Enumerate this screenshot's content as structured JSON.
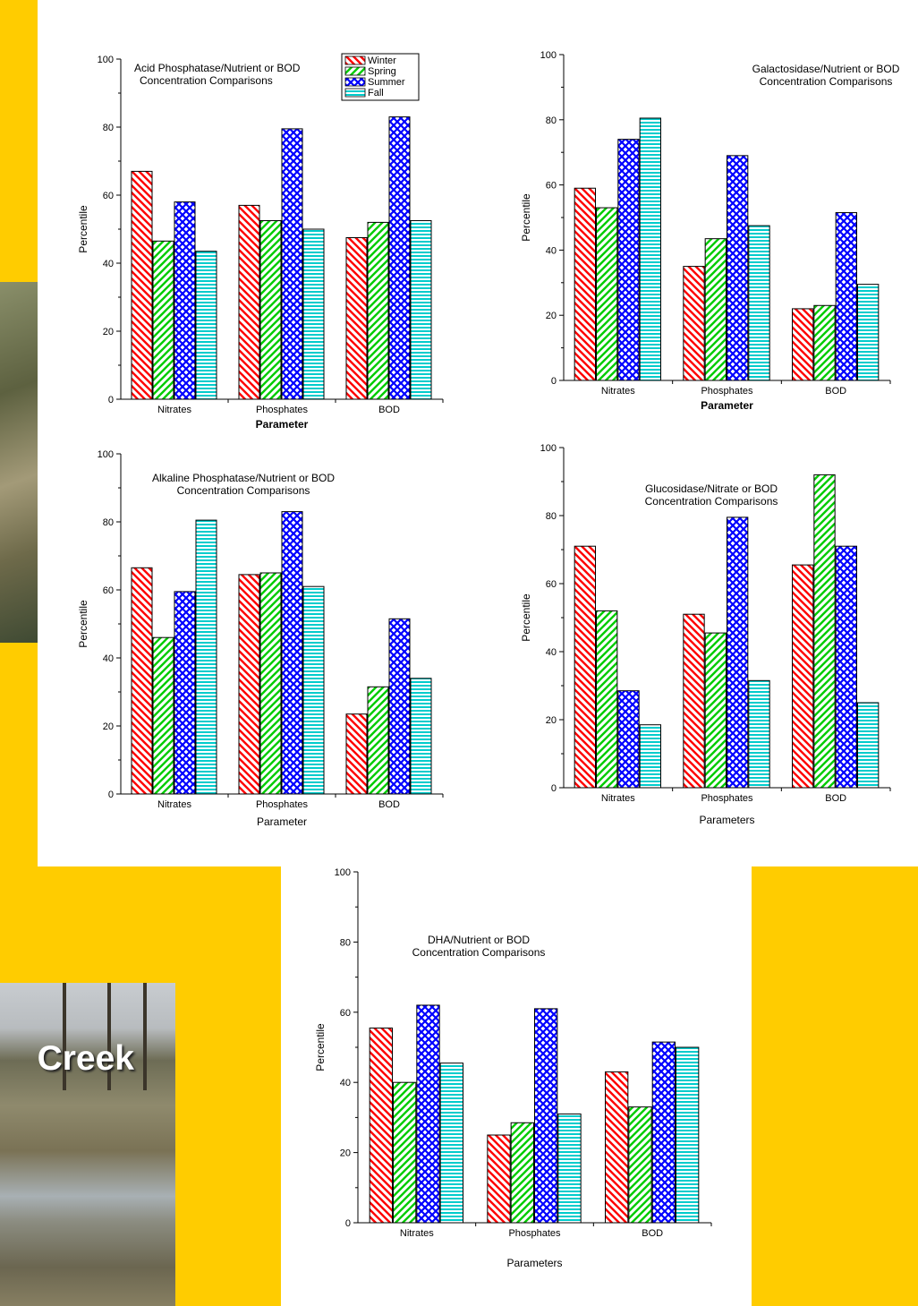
{
  "background": {
    "color": "#FFCC00"
  },
  "photo": {
    "caption": "Creek"
  },
  "series_colors": [
    "#ff0000",
    "#00cc00",
    "#0000ff",
    "#00cccc"
  ],
  "chart_data": [
    {
      "id": "acid",
      "type": "bar",
      "title_lines": [
        "Acid Phosphatase/Nutrient or BOD",
        "Concentration Comparisons"
      ],
      "xlabel": "Parameter",
      "xlabel_bold": true,
      "ylabel": "Percentile",
      "ylim": [
        0,
        100
      ],
      "yticks": [
        0,
        20,
        40,
        60,
        80,
        100
      ],
      "categories": [
        "Nitrates",
        "Phosphates",
        "BOD"
      ],
      "legend": {
        "placement": "top-right",
        "entries": [
          "Winter",
          "Spring",
          "Summer",
          "Fall"
        ]
      },
      "series": [
        {
          "name": "Winter",
          "values": [
            67,
            57,
            47.5
          ]
        },
        {
          "name": "Spring",
          "values": [
            46.5,
            52.5,
            52
          ]
        },
        {
          "name": "Summer",
          "values": [
            58,
            79.5,
            83
          ]
        },
        {
          "name": "Fall",
          "values": [
            43.5,
            50,
            52.5
          ]
        }
      ]
    },
    {
      "id": "galacto",
      "type": "bar",
      "title_lines": [
        "Galactosidase/Nutrient or BOD",
        "Concentration Comparisons"
      ],
      "xlabel": "Parameter",
      "xlabel_bold": true,
      "ylabel": "Percentile",
      "ylim": [
        0,
        100
      ],
      "yticks": [
        0,
        20,
        40,
        60,
        80,
        100
      ],
      "categories": [
        "Nitrates",
        "Phosphates",
        "BOD"
      ],
      "series": [
        {
          "name": "Winter",
          "values": [
            59,
            35,
            22
          ]
        },
        {
          "name": "Spring",
          "values": [
            53,
            43.5,
            23
          ]
        },
        {
          "name": "Summer",
          "values": [
            74,
            69,
            51.5
          ]
        },
        {
          "name": "Fall",
          "values": [
            80.5,
            47.5,
            29.5
          ]
        }
      ]
    },
    {
      "id": "alkaline",
      "type": "bar",
      "title_lines": [
        "Alkaline Phosphatase/Nutrient or BOD",
        "Concentration Comparisons"
      ],
      "xlabel": "Parameter",
      "xlabel_bold": false,
      "ylabel": "Percentile",
      "ylim": [
        0,
        100
      ],
      "yticks": [
        0,
        20,
        40,
        60,
        80,
        100
      ],
      "categories": [
        "Nitrates",
        "Phosphates",
        "BOD"
      ],
      "series": [
        {
          "name": "Winter",
          "values": [
            66.5,
            64.5,
            23.5
          ]
        },
        {
          "name": "Spring",
          "values": [
            46,
            65,
            31.5
          ]
        },
        {
          "name": "Summer",
          "values": [
            59.5,
            83,
            51.5
          ]
        },
        {
          "name": "Fall",
          "values": [
            80.5,
            61,
            34
          ]
        }
      ]
    },
    {
      "id": "glucosidase",
      "type": "bar",
      "title_lines": [
        "Glucosidase/Nitrate or BOD",
        "Concentration Comparisons"
      ],
      "xlabel": "Parameters",
      "xlabel_bold": false,
      "ylabel": "Percentile",
      "ylim": [
        0,
        100
      ],
      "yticks": [
        0,
        20,
        40,
        60,
        80,
        100
      ],
      "categories": [
        "Nitrates",
        "Phosphates",
        "BOD"
      ],
      "series": [
        {
          "name": "Winter",
          "values": [
            71,
            51,
            65.5
          ]
        },
        {
          "name": "Spring",
          "values": [
            52,
            45.5,
            92
          ]
        },
        {
          "name": "Summer",
          "values": [
            28.5,
            79.5,
            71
          ]
        },
        {
          "name": "Fall",
          "values": [
            18.5,
            31.5,
            25
          ]
        }
      ]
    },
    {
      "id": "dha",
      "type": "bar",
      "title_lines": [
        "DHA/Nutrient or BOD",
        "Concentration Comparisons"
      ],
      "xlabel": "Parameters",
      "xlabel_bold": false,
      "ylabel": "Percentile",
      "ylim": [
        0,
        100
      ],
      "yticks": [
        0,
        20,
        40,
        60,
        80,
        100
      ],
      "categories": [
        "Nitrates",
        "Phosphates",
        "BOD"
      ],
      "series": [
        {
          "name": "Winter",
          "values": [
            55.5,
            25,
            43
          ]
        },
        {
          "name": "Spring",
          "values": [
            40,
            28.5,
            33
          ]
        },
        {
          "name": "Summer",
          "values": [
            62,
            61,
            51.5
          ]
        },
        {
          "name": "Fall",
          "values": [
            45.5,
            31,
            50
          ]
        }
      ]
    }
  ]
}
